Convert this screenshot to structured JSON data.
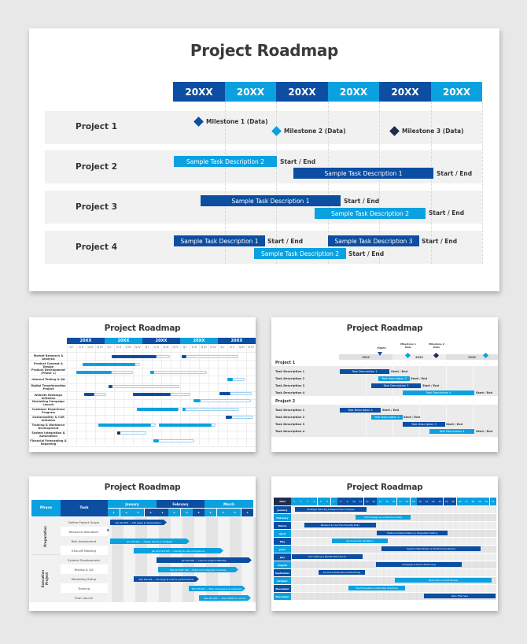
{
  "colors": {
    "dark_blue": "#0b4ea2",
    "light_blue": "#0ba1e0",
    "navy": "#1f2c4c",
    "row_gray": "#f1f1f1",
    "page_bg": "#e8e8e8"
  },
  "slide1": {
    "title": "Project Roadmap",
    "years": [
      "20XX",
      "20XX",
      "20XX",
      "20XX",
      "20XX",
      "20XX"
    ],
    "projects": [
      "Project 1",
      "Project 2",
      "Project 3",
      "Project 4"
    ],
    "milestones": [
      {
        "label": "Milestone 1 (Data)",
        "color": "dark"
      },
      {
        "label": "Milestone 2 (Data)",
        "color": "light"
      },
      {
        "label": "Milestone 3 (Data)",
        "color": "navy"
      }
    ],
    "tasks": [
      {
        "project": 2,
        "label": "Sample Task Description 2",
        "color": "light",
        "end_label": "Start / End"
      },
      {
        "project": 2,
        "label": "Sample Task Description 1",
        "color": "dark",
        "end_label": "Start / End"
      },
      {
        "project": 3,
        "label": "Sample Task Description 1",
        "color": "dark",
        "end_label": "Start / End"
      },
      {
        "project": 3,
        "label": "Sample Task Description 2",
        "color": "light",
        "end_label": "Start / End"
      },
      {
        "project": 4,
        "label": "Sample Task Description 1",
        "color": "dark",
        "end_label": "Start / End"
      },
      {
        "project": 4,
        "label": "Sample Task Description 3",
        "color": "dark",
        "end_label": "Start / End"
      },
      {
        "project": 4,
        "label": "Sample Task Description 2",
        "color": "light",
        "end_label": "Start / End"
      }
    ]
  },
  "slide2": {
    "title": "Project Roadmap",
    "years": [
      "20XX",
      "20XX",
      "20XX",
      "20XX",
      "20XX"
    ],
    "quarters": [
      "Q I",
      "Q II",
      "Q III",
      "Q IV"
    ],
    "rows": [
      "Market Research & Analysis",
      "Product Concept & Design",
      "Product Development (Phase 1)",
      "Internal Testing & QA",
      "Digital Transformation Project",
      "Website Redesign Initiative",
      "Marketing Campaign Launch",
      "Customer Experience Program",
      "Sustainability & CSR Initiative",
      "Training & Workforce Development",
      "System Integration & Automation",
      "Financial Forecasting & Reporting"
    ]
  },
  "slide3": {
    "title": "Project Roadmap",
    "years": [
      "2022",
      "2023",
      "2024"
    ],
    "markers": {
      "today": "TODAY",
      "milestone1": "Milestone 1 Date",
      "milestone2": "Milestone 2 Date"
    },
    "groups": [
      {
        "name": "Project 1",
        "tasks": [
          {
            "label": "Task Description 1",
            "bar": "Task Description 1",
            "end": "Start / End"
          },
          {
            "label": "Task Description 2",
            "bar": "Task Description 2",
            "end": "Start / End"
          },
          {
            "label": "Task Description 3",
            "bar": "Task Description 3",
            "end": "Start / End"
          },
          {
            "label": "Task Description 4",
            "bar": "Task Description 4",
            "end": "Start / End"
          }
        ]
      },
      {
        "name": "Project 2",
        "tasks": [
          {
            "label": "Task Description 1",
            "bar": "Task Description 1",
            "end": "Start / End"
          },
          {
            "label": "Task Description 2",
            "bar": "Task Description 2",
            "end": "Start / End"
          },
          {
            "label": "Task Description 3",
            "bar": "Task Description 3",
            "end": "Start / End"
          },
          {
            "label": "Task Description 4",
            "bar": "Task Description 4",
            "end": "Start / End"
          }
        ]
      }
    ]
  },
  "slide4": {
    "title": "Project Roadmap",
    "header": {
      "phase": "Phase",
      "task": "Task"
    },
    "months": [
      "January",
      "February",
      "March"
    ],
    "weeks": [
      "1",
      "2",
      "3",
      "4"
    ],
    "phases": [
      "Preparation",
      "Execution Project"
    ],
    "tasks": [
      {
        "name": "Define Project Scope",
        "bar": "Jan W1-W4 — Set goals & deliverables."
      },
      {
        "name": "Resource Allocation",
        "bar": ""
      },
      {
        "name": "Risk Assessment",
        "bar": "Jan W2-W4 — Assign teams & budgets."
      },
      {
        "name": "Kick-off Meeting",
        "bar": "Jan W1-Feb W3 — Identify & plan mitigations."
      },
      {
        "name": "System Development",
        "bar": "Jan W3-W4 — Launch project officially."
      },
      {
        "name": "Testing & QA",
        "bar": "Feb W1-Mar W4 — Build and integrate modules."
      },
      {
        "name": "Marketing Setup",
        "bar": "Feb W2-W4 — Fix bugs & ensure performance."
      },
      {
        "name": "Training",
        "bar": "Feb W3-W4 — Plan campaigns & materials."
      },
      {
        "name": "Final Launch",
        "bar": "Mar W1-W3 — Train staff for rollout."
      }
    ]
  },
  "slide5": {
    "title": "Project Roadmap",
    "corner": "2024",
    "days": [
      "1",
      "2",
      "3",
      "4",
      "5",
      "6",
      "7",
      "8",
      "9",
      "10",
      "11",
      "12",
      "13",
      "14",
      "15",
      "16",
      "17",
      "18",
      "19",
      "20",
      "21",
      "22",
      "23",
      "24",
      "25",
      "26",
      "27",
      "28",
      "29",
      "30",
      "31"
    ],
    "months": [
      "January",
      "February",
      "March",
      "April",
      "May",
      "June",
      "July",
      "August",
      "September",
      "October",
      "November",
      "December"
    ],
    "bars": [
      "Strategic Planning & Requirement Analysis",
      "UX/UI Design & Architecture Setup",
      "Backend & Core Functionality Build",
      "Feature Implementation & Integration Testing",
      "QA & Security Validation",
      "System Optimization & Performance Review",
      "User Testing & Market Pilot Launch",
      "Campaign & Brand Positioning",
      "Go-Live & Post-Launch Monitoring",
      "Performance & ROI Review",
      "Final Evaluation & Next-Year Roadmap",
      "Main Title Here"
    ]
  },
  "chart_data": [
    {
      "type": "gantt",
      "title": "Project Roadmap",
      "categories": [
        "20XX",
        "20XX",
        "20XX",
        "20XX",
        "20XX",
        "20XX"
      ],
      "rows": [
        "Project 1",
        "Project 2",
        "Project 3",
        "Project 4"
      ],
      "milestones": [
        {
          "row": "Project 1",
          "label": "Milestone 1 (Data)",
          "x": 0.4
        },
        {
          "row": "Project 1",
          "label": "Milestone 2 (Data)",
          "x": 2.0
        },
        {
          "row": "Project 1",
          "label": "Milestone 3 (Data)",
          "x": 4.3
        }
      ],
      "series": [
        {
          "row": "Project 2",
          "name": "Sample Task Description 2",
          "start": 0.0,
          "end": 2.0
        },
        {
          "row": "Project 2",
          "name": "Sample Task Description 1",
          "start": 2.3,
          "end": 5.05
        },
        {
          "row": "Project 3",
          "name": "Sample Task Description 1",
          "start": 0.5,
          "end": 3.2
        },
        {
          "row": "Project 3",
          "name": "Sample Task Description 2",
          "start": 2.7,
          "end": 4.9
        },
        {
          "row": "Project 4",
          "name": "Sample Task Description 1",
          "start": 0.0,
          "end": 1.8
        },
        {
          "row": "Project 4",
          "name": "Sample Task Description 3",
          "start": 3.0,
          "end": 4.8
        },
        {
          "row": "Project 4",
          "name": "Sample Task Description 2",
          "start": 1.6,
          "end": 3.4
        }
      ]
    },
    {
      "type": "gantt",
      "title": "Project Roadmap",
      "categories": [
        "20XX Q1-Q4 x5"
      ],
      "rows": [
        "Market Research & Analysis",
        "Product Concept & Design",
        "Product Development (Phase 1)",
        "Internal Testing & QA",
        "Digital Transformation Project",
        "Website Redesign Initiative",
        "Marketing Campaign Launch",
        "Customer Experience Program",
        "Sustainability & CSR Initiative",
        "Training & Workforce Development",
        "System Integration & Automation",
        "Financial Forecasting & Reporting"
      ]
    },
    {
      "type": "gantt",
      "title": "Project Roadmap",
      "categories": [
        "2022",
        "2023",
        "2024"
      ],
      "rows": [
        "Project 1: Task Description 1-4",
        "Project 2: Task Description 1-4"
      ]
    },
    {
      "type": "gantt",
      "title": "Project Roadmap",
      "categories": [
        "January W1-W4",
        "February W1-W4",
        "March W1-W4"
      ],
      "rows": [
        "Define Project Scope",
        "Resource Allocation",
        "Risk Assessment",
        "Kick-off Meeting",
        "System Development",
        "Testing & QA",
        "Marketing Setup",
        "Training",
        "Final Launch"
      ]
    },
    {
      "type": "gantt",
      "title": "Project Roadmap",
      "categories": [
        "Days 1-31"
      ],
      "rows": [
        "January",
        "February",
        "March",
        "April",
        "May",
        "June",
        "July",
        "August",
        "September",
        "October",
        "November",
        "December"
      ]
    }
  ]
}
